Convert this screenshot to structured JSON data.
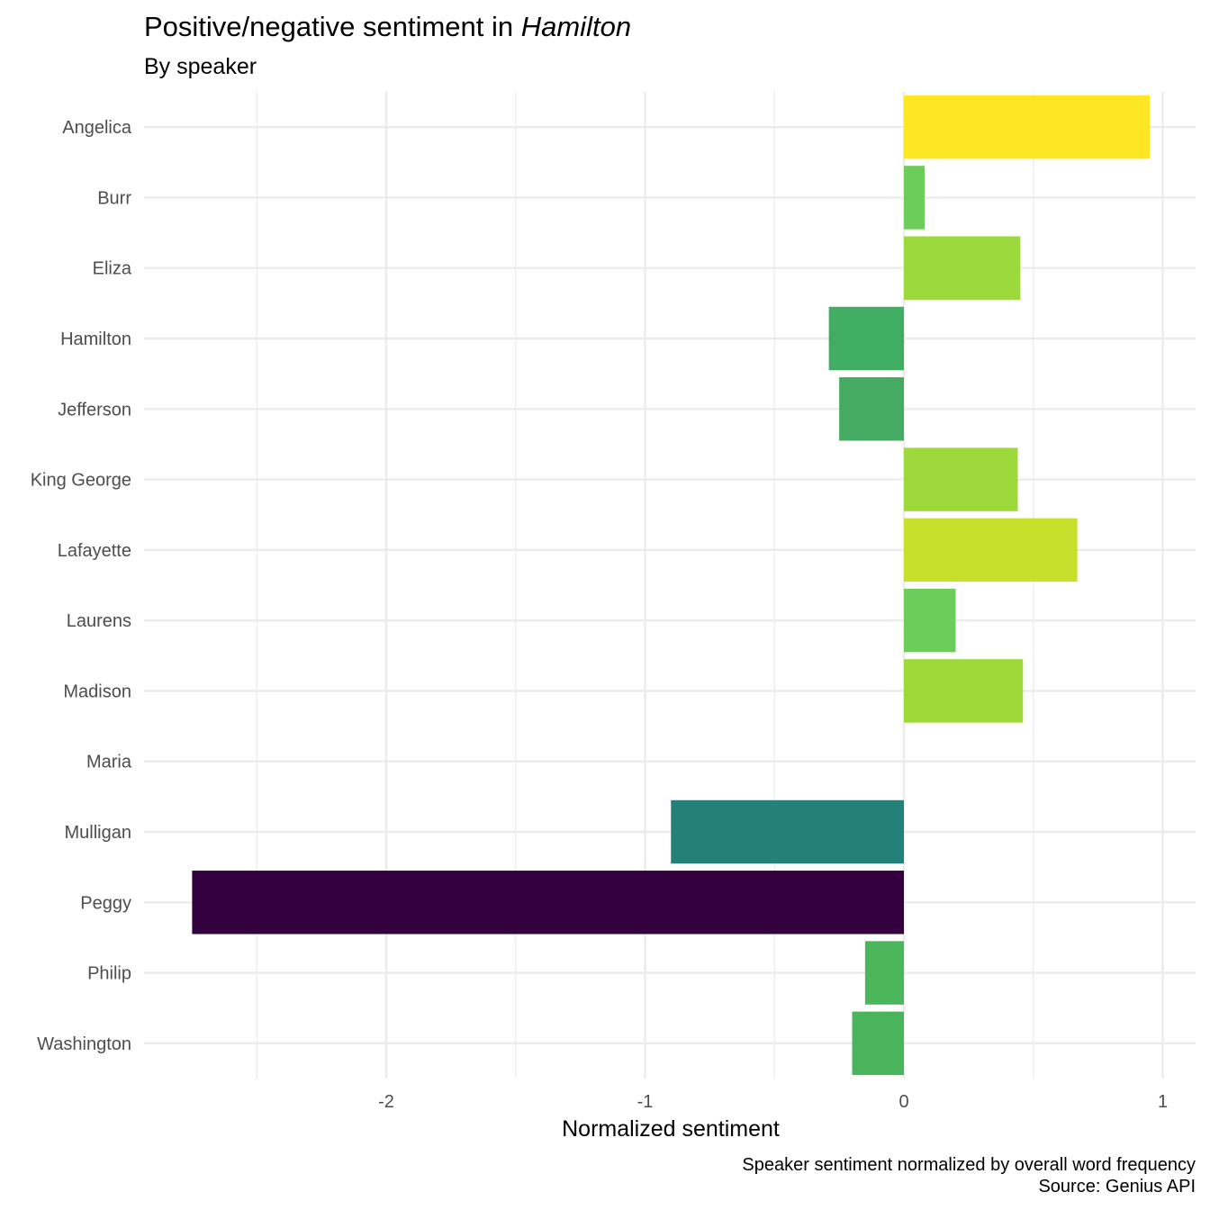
{
  "title_prefix": "Positive/negative sentiment in ",
  "title_italic": "Hamilton",
  "subtitle": "By speaker",
  "caption_line1": "Speaker sentiment normalized by overall word frequency",
  "caption_line2": "Source: Genius API",
  "chart_data": {
    "type": "bar",
    "orientation": "horizontal",
    "title": "Positive/negative sentiment in Hamilton",
    "subtitle": "By speaker",
    "xlabel": "Normalized sentiment",
    "ylabel": "",
    "xlim": [
      -2.75,
      1.13
    ],
    "x_ticks": [
      -2,
      -1,
      0,
      1
    ],
    "grid": true,
    "legend": "none",
    "categories": [
      "Angelica",
      "Burr",
      "Eliza",
      "Hamilton",
      "Jefferson",
      "King George",
      "Lafayette",
      "Laurens",
      "Madison",
      "Maria",
      "Mulligan",
      "Peggy",
      "Philip",
      "Washington"
    ],
    "values": [
      0.95,
      0.08,
      0.45,
      -0.29,
      -0.25,
      0.44,
      0.67,
      0.2,
      0.46,
      0.0,
      -0.9,
      -2.75,
      -0.15,
      -0.2
    ],
    "colors": [
      "#FDE725",
      "#6CCD5A",
      "#9BD93C",
      "#41AD63",
      "#45AA62",
      "#9DD93B",
      "#C7E02C",
      "#6CCD5A",
      "#9FD939",
      "#5EC962",
      "#23817A",
      "#35003E",
      "#4CB65C",
      "#4AB45D"
    ],
    "caption": [
      "Speaker sentiment normalized by overall word frequency",
      "Source: Genius API"
    ]
  }
}
